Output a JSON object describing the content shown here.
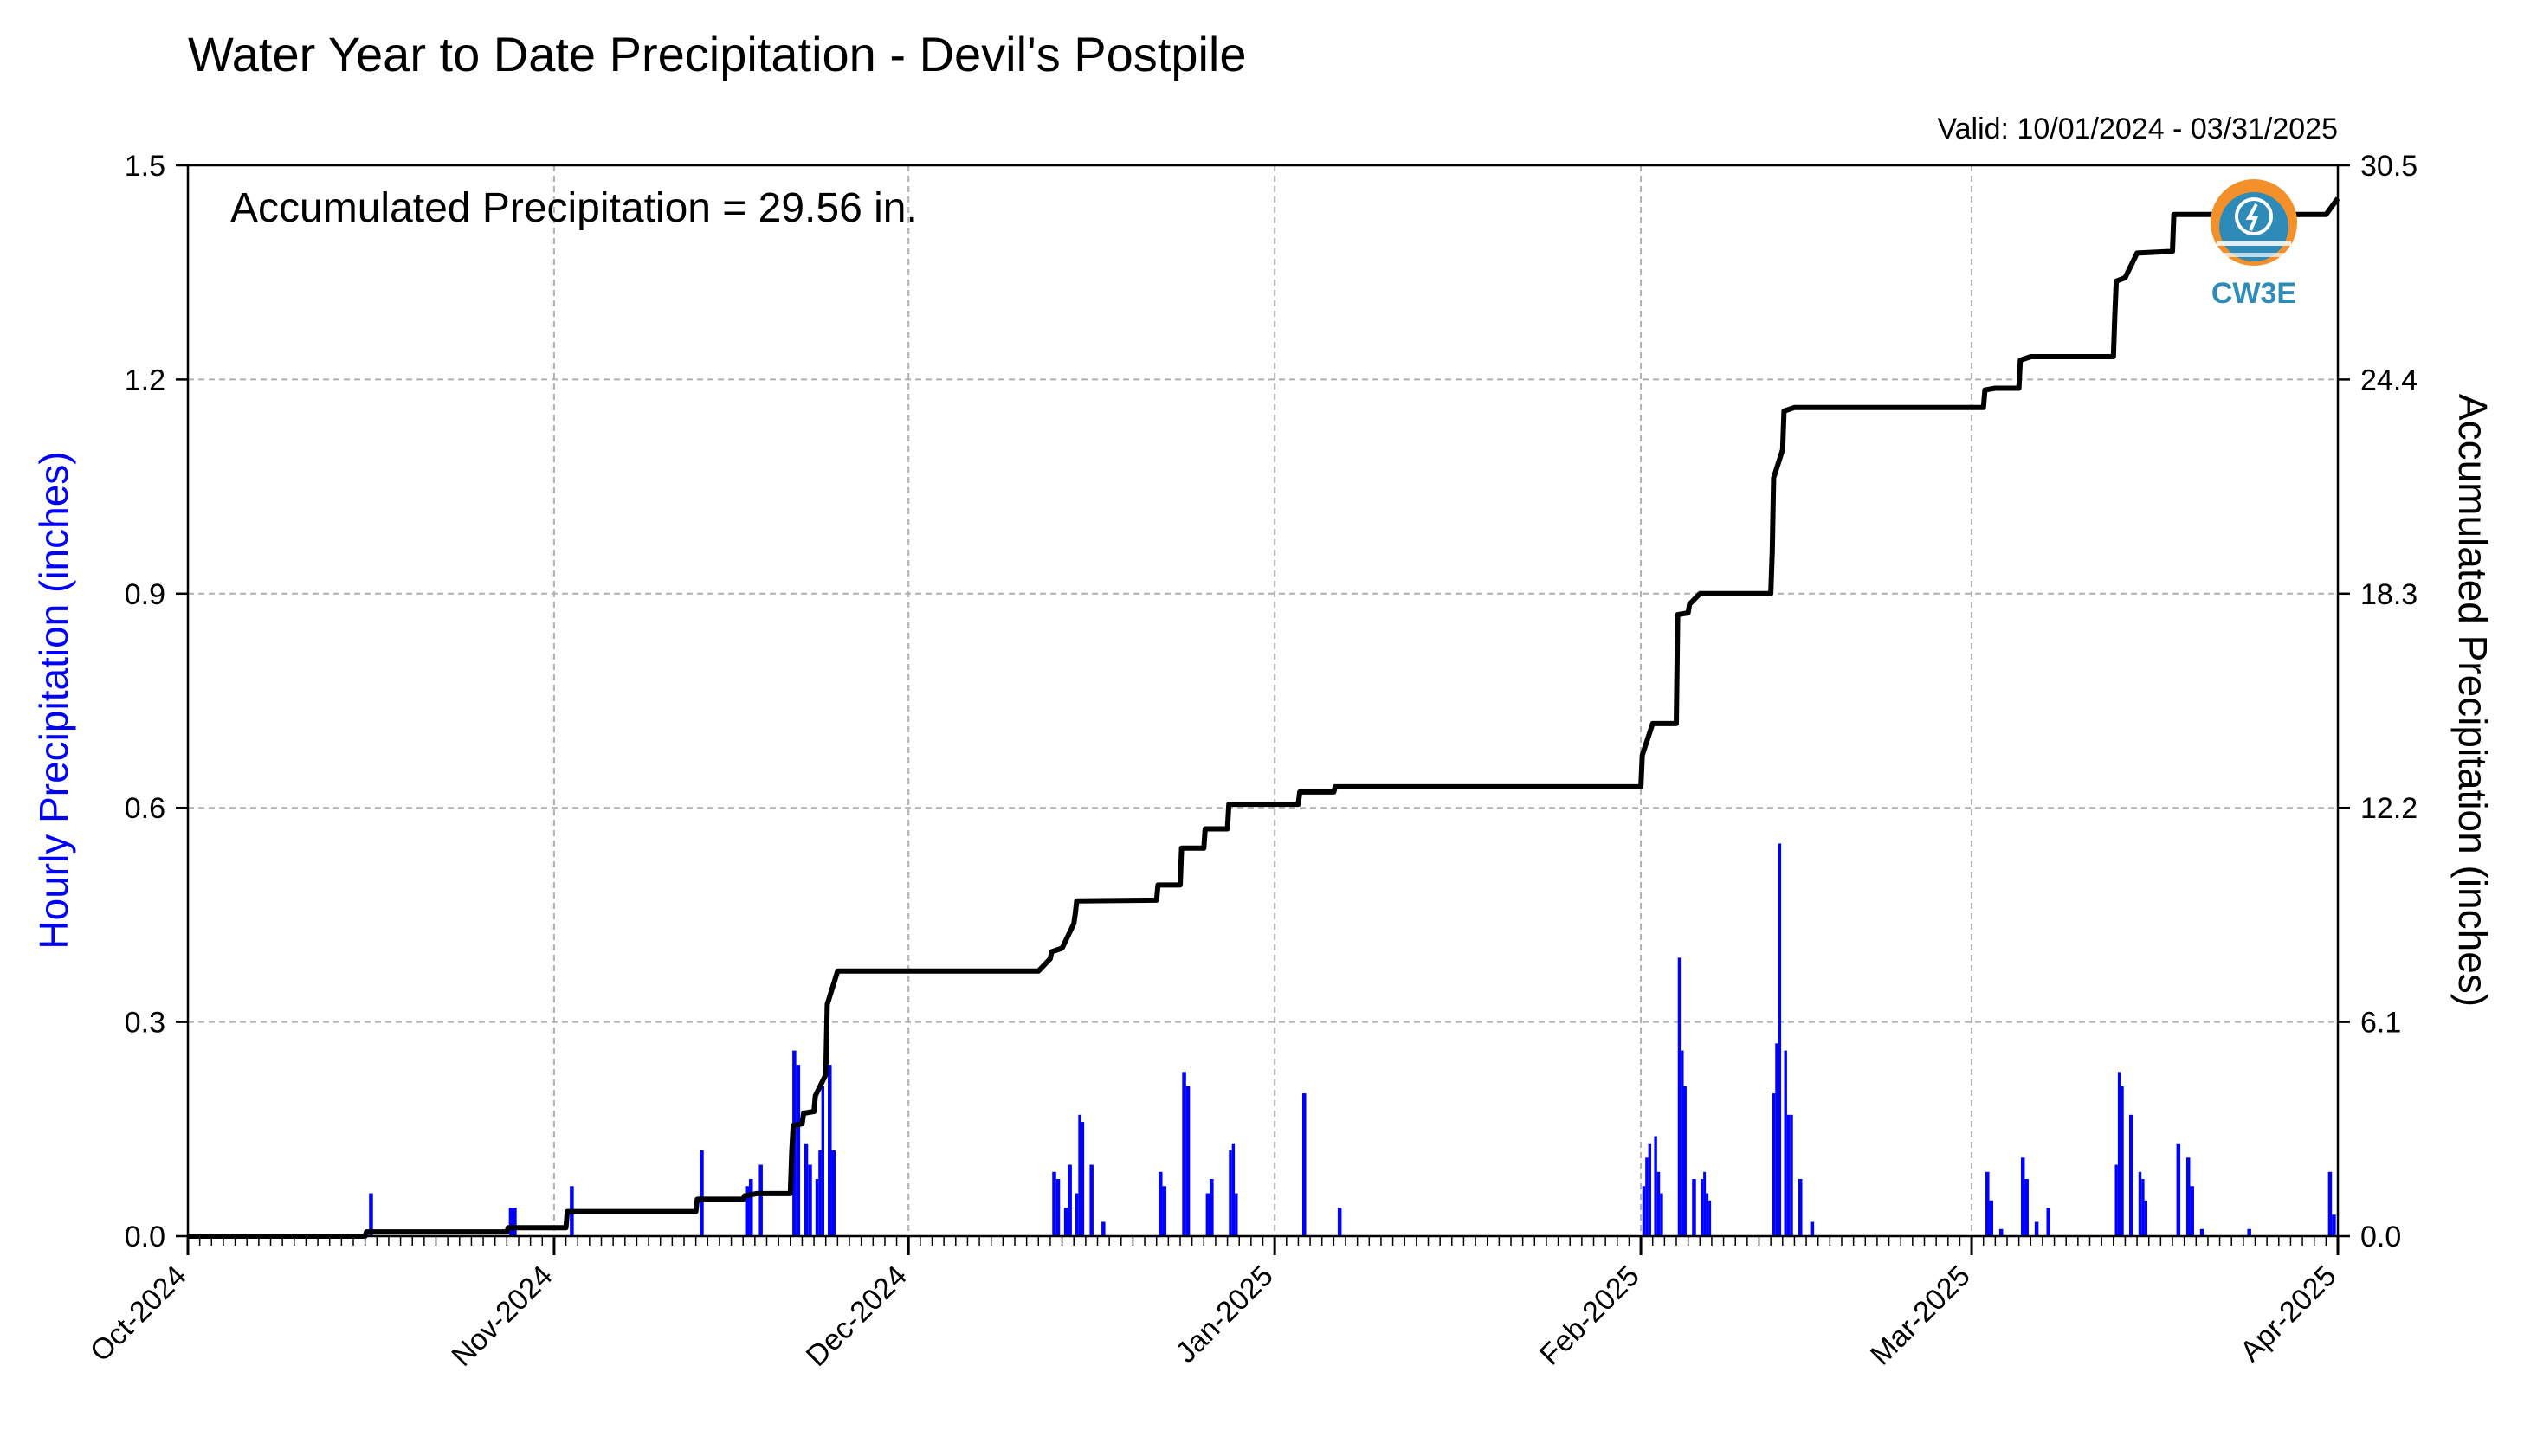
{
  "chart_data": {
    "type": "bar+line",
    "title": "Water Year to Date Precipitation - Devil's Postpile",
    "valid_range": "Valid: 10/01/2024 - 03/31/2025",
    "annotation": "Accumulated Precipitation = 29.56 in.",
    "logo_text": "CW3E",
    "ylabel_left": "Hourly Precipitation (inches)",
    "ylabel_right": "Accumulated Precipitation (inches)",
    "ylim_left": [
      0,
      1.5
    ],
    "ylim_right": [
      0,
      30.5
    ],
    "yticks_left": [
      "0.0",
      "0.3",
      "0.6",
      "0.9",
      "1.2",
      "1.5"
    ],
    "yticks_right": [
      "0.0",
      "6.1",
      "12.2",
      "18.3",
      "24.4",
      "30.5"
    ],
    "x_start": "2024-10-01",
    "x_end": "2025-04-01",
    "x_tick_dates": [
      "2024-10-01",
      "2024-11-01",
      "2024-12-01",
      "2025-01-01",
      "2025-02-01",
      "2025-03-01",
      "2025-04-01"
    ],
    "x_tick_labels": [
      "Oct-2024",
      "Nov-2024",
      "Dec-2024",
      "Jan-2025",
      "Feb-2025",
      "Mar-2025",
      "Apr-2025"
    ],
    "grid": true,
    "colors": {
      "hourly": "#0000ff",
      "accumulated": "#000000",
      "grid": "#b0b0b0",
      "left_label": "#0000ff"
    },
    "series": [
      {
        "type": "bar",
        "axis": "left",
        "points": [
          [
            "2024-10-16",
            0.06
          ],
          [
            "2024-10-28",
            0.04
          ],
          [
            "2024-10-28",
            0.04
          ],
          [
            "2024-11-02",
            0.07
          ],
          [
            "2024-11-13",
            0.12
          ],
          [
            "2024-11-17",
            0.07
          ],
          [
            "2024-11-17",
            0.08
          ],
          [
            "2024-11-18",
            0.1
          ],
          [
            "2024-11-21",
            0.26
          ],
          [
            "2024-11-21",
            0.24
          ],
          [
            "2024-11-22",
            0.13
          ],
          [
            "2024-11-22",
            0.1
          ],
          [
            "2024-11-23",
            0.08
          ],
          [
            "2024-11-23",
            0.12
          ],
          [
            "2024-11-23",
            0.21
          ],
          [
            "2024-11-24",
            0.24
          ],
          [
            "2024-11-24",
            0.12
          ],
          [
            "2024-12-13",
            0.09
          ],
          [
            "2024-12-13",
            0.08
          ],
          [
            "2024-12-14",
            0.04
          ],
          [
            "2024-12-14",
            0.1
          ],
          [
            "2024-12-15",
            0.06
          ],
          [
            "2024-12-15",
            0.17
          ],
          [
            "2024-12-15",
            0.16
          ],
          [
            "2024-12-16",
            0.1
          ],
          [
            "2024-12-17",
            0.02
          ],
          [
            "2024-12-22",
            0.09
          ],
          [
            "2024-12-22",
            0.07
          ],
          [
            "2024-12-24",
            0.23
          ],
          [
            "2024-12-24",
            0.21
          ],
          [
            "2024-12-26",
            0.06
          ],
          [
            "2024-12-26",
            0.08
          ],
          [
            "2024-12-28",
            0.12
          ],
          [
            "2024-12-28",
            0.13
          ],
          [
            "2024-12-28",
            0.06
          ],
          [
            "2025-01-03",
            0.2
          ],
          [
            "2025-01-06",
            0.04
          ],
          [
            "2025-02-01",
            0.07
          ],
          [
            "2025-02-01",
            0.11
          ],
          [
            "2025-02-01",
            0.13
          ],
          [
            "2025-02-02",
            0.14
          ],
          [
            "2025-02-02",
            0.09
          ],
          [
            "2025-02-02",
            0.06
          ],
          [
            "2025-02-04",
            0.39
          ],
          [
            "2025-02-04",
            0.26
          ],
          [
            "2025-02-04",
            0.21
          ],
          [
            "2025-02-05",
            0.08
          ],
          [
            "2025-02-06",
            0.08
          ],
          [
            "2025-02-06",
            0.09
          ],
          [
            "2025-02-06",
            0.06
          ],
          [
            "2025-02-06",
            0.05
          ],
          [
            "2025-02-12",
            0.2
          ],
          [
            "2025-02-12",
            0.27
          ],
          [
            "2025-02-12",
            0.55
          ],
          [
            "2025-02-13",
            0.26
          ],
          [
            "2025-02-13",
            0.17
          ],
          [
            "2025-02-13",
            0.17
          ],
          [
            "2025-02-14",
            0.08
          ],
          [
            "2025-02-15",
            0.02
          ],
          [
            "2025-03-02",
            0.09
          ],
          [
            "2025-03-02",
            0.05
          ],
          [
            "2025-03-03",
            0.01
          ],
          [
            "2025-03-05",
            0.11
          ],
          [
            "2025-03-05",
            0.08
          ],
          [
            "2025-03-06",
            0.02
          ],
          [
            "2025-03-07",
            0.04
          ],
          [
            "2025-03-13",
            0.1
          ],
          [
            "2025-03-13",
            0.23
          ],
          [
            "2025-03-13",
            0.21
          ],
          [
            "2025-03-14",
            0.17
          ],
          [
            "2025-03-15",
            0.09
          ],
          [
            "2025-03-15",
            0.08
          ],
          [
            "2025-03-15",
            0.05
          ],
          [
            "2025-03-18",
            0.13
          ],
          [
            "2025-03-19",
            0.11
          ],
          [
            "2025-03-19",
            0.07
          ],
          [
            "2025-03-20",
            0.01
          ],
          [
            "2025-03-24",
            0.01
          ],
          [
            "2025-03-31",
            0.09
          ],
          [
            "2025-03-31",
            0.03
          ]
        ]
      },
      {
        "type": "line",
        "axis": "right",
        "points": [
          [
            "2024-10-01",
            0.0
          ],
          [
            "2024-10-16",
            0.0
          ],
          [
            "2024-10-16",
            0.12
          ],
          [
            "2024-10-28",
            0.12
          ],
          [
            "2024-10-28",
            0.24
          ],
          [
            "2024-11-02",
            0.24
          ],
          [
            "2024-11-02",
            0.7
          ],
          [
            "2024-11-13",
            0.7
          ],
          [
            "2024-11-13",
            1.05
          ],
          [
            "2024-11-17",
            1.05
          ],
          [
            "2024-11-17",
            1.15
          ],
          [
            "2024-11-18",
            1.2
          ],
          [
            "2024-11-18",
            1.21
          ],
          [
            "2024-11-21",
            1.21
          ],
          [
            "2024-11-21",
            2.4
          ],
          [
            "2024-11-21",
            3.15
          ],
          [
            "2024-11-22",
            3.2
          ],
          [
            "2024-11-22",
            3.5
          ],
          [
            "2024-11-23",
            3.55
          ],
          [
            "2024-11-23",
            4.0
          ],
          [
            "2024-11-24",
            4.6
          ],
          [
            "2024-11-24",
            6.6
          ],
          [
            "2024-11-25",
            7.55
          ],
          [
            "2024-12-12",
            7.55
          ],
          [
            "2024-12-13",
            7.9
          ],
          [
            "2024-12-13",
            8.1
          ],
          [
            "2024-12-14",
            8.2
          ],
          [
            "2024-12-15",
            8.9
          ],
          [
            "2024-12-15",
            9.2
          ],
          [
            "2024-12-15",
            9.55
          ],
          [
            "2024-12-22",
            9.57
          ],
          [
            "2024-12-22",
            10.0
          ],
          [
            "2024-12-24",
            10.0
          ],
          [
            "2024-12-24",
            11.05
          ],
          [
            "2024-12-26",
            11.05
          ],
          [
            "2024-12-26",
            11.6
          ],
          [
            "2024-12-28",
            11.6
          ],
          [
            "2024-12-28",
            12.3
          ],
          [
            "2025-01-03",
            12.3
          ],
          [
            "2025-01-03",
            12.65
          ],
          [
            "2025-01-06",
            12.65
          ],
          [
            "2025-01-06",
            12.8
          ],
          [
            "2025-02-01",
            12.8
          ],
          [
            "2025-02-01",
            13.7
          ],
          [
            "2025-02-02",
            14.6
          ],
          [
            "2025-02-04",
            14.6
          ],
          [
            "2025-02-04",
            17.7
          ],
          [
            "2025-02-05",
            17.75
          ],
          [
            "2025-02-05",
            18.0
          ],
          [
            "2025-02-06",
            18.3
          ],
          [
            "2025-02-12",
            18.3
          ],
          [
            "2025-02-12",
            19.5
          ],
          [
            "2025-02-12",
            21.6
          ],
          [
            "2025-02-13",
            22.4
          ],
          [
            "2025-02-13",
            23.5
          ],
          [
            "2025-02-14",
            23.6
          ],
          [
            "2025-03-02",
            23.6
          ],
          [
            "2025-03-02",
            24.1
          ],
          [
            "2025-03-03",
            24.15
          ],
          [
            "2025-03-05",
            24.15
          ],
          [
            "2025-03-05",
            24.95
          ],
          [
            "2025-03-06",
            25.05
          ],
          [
            "2025-03-13",
            25.05
          ],
          [
            "2025-03-13",
            26.2
          ],
          [
            "2025-03-13",
            27.2
          ],
          [
            "2025-03-14",
            27.3
          ],
          [
            "2025-03-15",
            28.0
          ],
          [
            "2025-03-18",
            28.05
          ],
          [
            "2025-03-18",
            29.1
          ],
          [
            "2025-03-31",
            29.1
          ],
          [
            "2025-04-01",
            29.56
          ]
        ]
      }
    ]
  }
}
